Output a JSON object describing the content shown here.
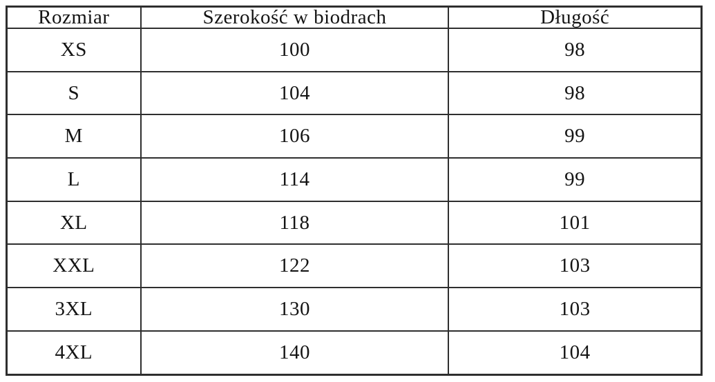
{
  "table": {
    "title": "size-chart",
    "columns": [
      {
        "key": "size",
        "label": "Rozmiar"
      },
      {
        "key": "hip_width",
        "label": "Szerokość w biodrach"
      },
      {
        "key": "length",
        "label": "Długość"
      }
    ],
    "rows": [
      {
        "size": "XS",
        "hip_width": "100",
        "length": "98"
      },
      {
        "size": "S",
        "hip_width": "104",
        "length": "98"
      },
      {
        "size": "M",
        "hip_width": "106",
        "length": "99"
      },
      {
        "size": "L",
        "hip_width": "114",
        "length": "99"
      },
      {
        "size": "XL",
        "hip_width": "118",
        "length": "101"
      },
      {
        "size": "XXL",
        "hip_width": "122",
        "length": "103"
      },
      {
        "size": "3XL",
        "hip_width": "130",
        "length": "103"
      },
      {
        "size": "4XL",
        "hip_width": "140",
        "length": "104"
      }
    ]
  },
  "colors": {
    "border": "#2e2e2e",
    "text": "#141414",
    "background": "#ffffff"
  }
}
